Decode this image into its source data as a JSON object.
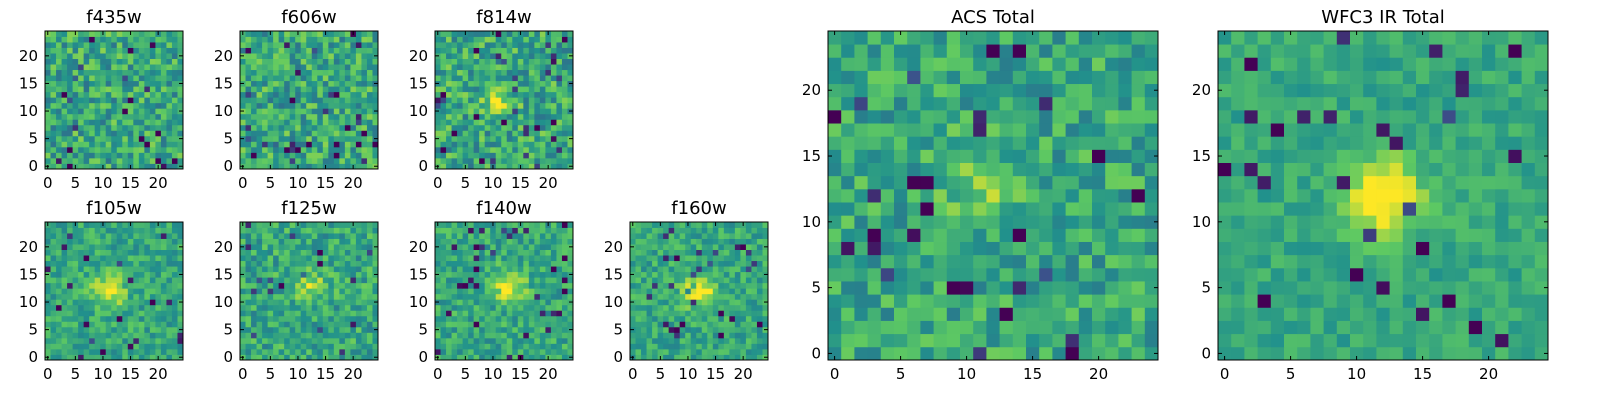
{
  "colormap": {
    "name": "viridis",
    "stops": [
      "#440154",
      "#3b528b",
      "#21918c",
      "#5ec962",
      "#fde725"
    ]
  },
  "chart_data": [
    {
      "type": "heatmap",
      "title": "f435w",
      "grid_size": 25,
      "xticks": [
        "0",
        "5",
        "10",
        "15",
        "20"
      ],
      "yticks": [
        "0",
        "5",
        "10",
        "15",
        "20"
      ],
      "source_center": null,
      "source_strength": 0.0,
      "noise": 0.22
    },
    {
      "type": "heatmap",
      "title": "f606w",
      "grid_size": 25,
      "xticks": [
        "0",
        "5",
        "10",
        "15",
        "20"
      ],
      "yticks": [
        "0",
        "5",
        "10",
        "15",
        "20"
      ],
      "source_center": null,
      "source_strength": 0.0,
      "noise": 0.22
    },
    {
      "type": "heatmap",
      "title": "f814w",
      "grid_size": 25,
      "xticks": [
        "0",
        "5",
        "10",
        "15",
        "20"
      ],
      "yticks": [
        "0",
        "5",
        "10",
        "15",
        "20"
      ],
      "source_center": [
        11,
        12
      ],
      "source_strength": 0.25,
      "noise": 0.22
    },
    {
      "type": "heatmap",
      "title": "f105w",
      "grid_size": 25,
      "xticks": [
        "0",
        "5",
        "10",
        "15",
        "20"
      ],
      "yticks": [
        "0",
        "5",
        "10",
        "15",
        "20"
      ],
      "source_center": [
        11,
        12
      ],
      "source_strength": 0.4,
      "noise": 0.15
    },
    {
      "type": "heatmap",
      "title": "f125w",
      "grid_size": 25,
      "xticks": [
        "0",
        "5",
        "10",
        "15",
        "20"
      ],
      "yticks": [
        "0",
        "5",
        "10",
        "15",
        "20"
      ],
      "source_center": [
        12,
        13
      ],
      "source_strength": 0.3,
      "noise": 0.18
    },
    {
      "type": "heatmap",
      "title": "f140w",
      "grid_size": 25,
      "xticks": [
        "0",
        "5",
        "10",
        "15",
        "20"
      ],
      "yticks": [
        "0",
        "5",
        "10",
        "15",
        "20"
      ],
      "source_center": [
        13,
        13
      ],
      "source_strength": 0.4,
      "noise": 0.16
    },
    {
      "type": "heatmap",
      "title": "f160w",
      "grid_size": 25,
      "xticks": [
        "0",
        "5",
        "10",
        "15",
        "20"
      ],
      "yticks": [
        "0",
        "5",
        "10",
        "15",
        "20"
      ],
      "source_center": [
        12,
        12
      ],
      "source_strength": 0.45,
      "noise": 0.15
    },
    {
      "type": "heatmap",
      "title": "ACS Total",
      "grid_size": 25,
      "xticks": [
        "0",
        "5",
        "10",
        "15",
        "20"
      ],
      "yticks": [
        "0",
        "5",
        "10",
        "15",
        "20"
      ],
      "source_center": [
        11,
        13
      ],
      "source_strength": 0.2,
      "noise": 0.18
    },
    {
      "type": "heatmap",
      "title": "WFC3 IR Total",
      "grid_size": 25,
      "xticks": [
        "0",
        "5",
        "10",
        "15",
        "20"
      ],
      "yticks": [
        "0",
        "5",
        "10",
        "15",
        "20"
      ],
      "source_center": [
        12,
        12
      ],
      "source_strength": 0.5,
      "noise": 0.1
    }
  ]
}
